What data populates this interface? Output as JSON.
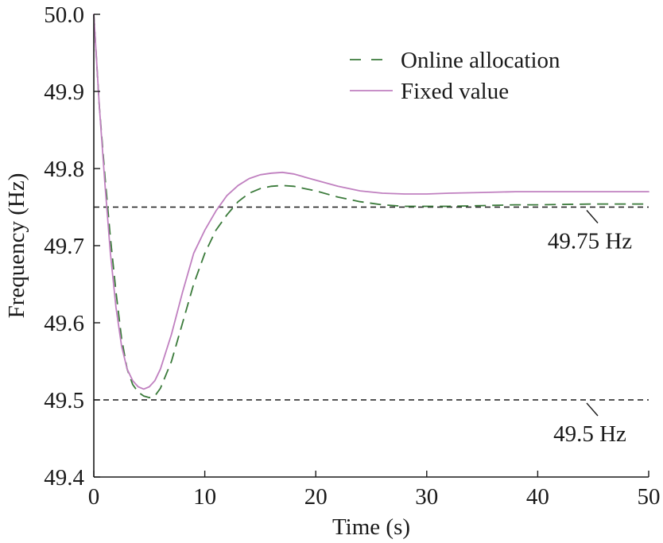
{
  "chart_data": {
    "type": "line",
    "xlabel": "Time (s)",
    "ylabel": "Frequency (Hz)",
    "xlim": [
      0,
      50
    ],
    "ylim": [
      49.4,
      50.0
    ],
    "xticks": [
      "0",
      "10",
      "20",
      "30",
      "40",
      "50"
    ],
    "yticks": [
      "49.4",
      "49.5",
      "49.6",
      "49.7",
      "49.8",
      "49.9",
      "50.0"
    ],
    "grid": false,
    "legend_position": "top-right",
    "series": [
      {
        "name": "Online allocation",
        "color": "#3a7a3a",
        "style": "dashed",
        "x": [
          0,
          0.5,
          1,
          1.5,
          2,
          2.5,
          3,
          3.5,
          4,
          4.5,
          5,
          5.5,
          6,
          7,
          8,
          9,
          10,
          11,
          12,
          13,
          14,
          15,
          16,
          17,
          18,
          19,
          20,
          22,
          24,
          26,
          28,
          30,
          32,
          35,
          38,
          40,
          45,
          50
        ],
        "y": [
          50.0,
          49.88,
          49.79,
          49.71,
          49.64,
          49.58,
          49.54,
          49.52,
          49.51,
          49.505,
          49.503,
          49.505,
          49.515,
          49.55,
          49.6,
          49.65,
          49.69,
          49.72,
          49.74,
          49.757,
          49.768,
          49.774,
          49.777,
          49.778,
          49.777,
          49.774,
          49.771,
          49.763,
          49.757,
          49.753,
          49.751,
          49.751,
          49.751,
          49.752,
          49.753,
          49.753,
          49.754,
          49.754
        ]
      },
      {
        "name": "Fixed value",
        "color": "#c080c0",
        "style": "solid",
        "x": [
          0,
          0.5,
          1,
          1.5,
          2,
          2.5,
          3,
          3.5,
          4,
          4.5,
          5,
          5.5,
          6,
          7,
          8,
          9,
          10,
          11,
          12,
          13,
          14,
          15,
          16,
          17,
          18,
          19,
          20,
          22,
          24,
          26,
          28,
          30,
          32,
          35,
          38,
          40,
          45,
          50
        ],
        "y": [
          50.0,
          49.88,
          49.78,
          49.69,
          49.62,
          49.57,
          49.54,
          49.525,
          49.517,
          49.514,
          49.517,
          49.525,
          49.54,
          49.585,
          49.64,
          49.69,
          49.72,
          49.745,
          49.765,
          49.778,
          49.787,
          49.792,
          49.794,
          49.795,
          49.793,
          49.789,
          49.785,
          49.777,
          49.771,
          49.768,
          49.767,
          49.767,
          49.768,
          49.769,
          49.77,
          49.77,
          49.77,
          49.77
        ]
      }
    ],
    "reference_lines": [
      {
        "y": 49.75,
        "label": "49.75 Hz"
      },
      {
        "y": 49.5,
        "label": "49.5 Hz"
      }
    ]
  }
}
